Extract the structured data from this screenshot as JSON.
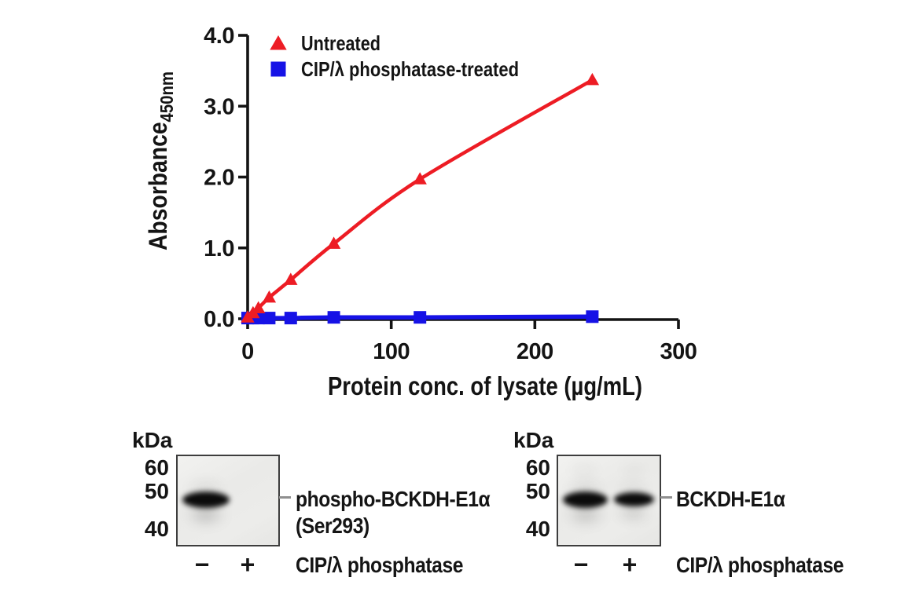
{
  "chart_data": {
    "type": "line",
    "title": "",
    "xlabel": "Protein conc. of lysate (µg/mL)",
    "ylabel": "Absorbance",
    "ylabel_subscript": "450nm",
    "xlim": [
      0,
      300
    ],
    "ylim": [
      0,
      4
    ],
    "x_ticks": [
      0,
      100,
      200,
      300
    ],
    "x_tick_labels": [
      "0",
      "100",
      "200",
      "300"
    ],
    "y_ticks": [
      0,
      1,
      2,
      3,
      4
    ],
    "y_tick_labels": [
      "0.0",
      "1.0",
      "2.0",
      "3.0",
      "4.0"
    ],
    "grid": false,
    "legend_position": "top-left-inside",
    "series": [
      {
        "name": "Untreated",
        "color": "#ed1c24",
        "marker": "triangle",
        "x": [
          0,
          3.75,
          7.5,
          15,
          30,
          60,
          120,
          240
        ],
        "y": [
          0.02,
          0.08,
          0.15,
          0.3,
          0.55,
          1.06,
          1.97,
          3.37
        ]
      },
      {
        "name": "CIP/λ phosphatase-treated",
        "color": "#1612e6",
        "marker": "square",
        "x": [
          0,
          3.75,
          7.5,
          15,
          30,
          60,
          120,
          240
        ],
        "y": [
          0.01,
          0.01,
          0.01,
          0.01,
          0.01,
          0.02,
          0.02,
          0.03
        ]
      }
    ]
  },
  "blots": [
    {
      "kda_label": "kDa",
      "marker_60": "60",
      "marker_50": "50",
      "marker_40": "40",
      "target_line1": "phospho-BCKDH-E1α",
      "target_line2": "(Ser293)",
      "lane_minus": "−",
      "lane_plus": "+",
      "treatment_label": "CIP/λ phosphatase",
      "bands": [
        {
          "lane": "minus",
          "intensity": "strong"
        }
      ]
    },
    {
      "kda_label": "kDa",
      "marker_60": "60",
      "marker_50": "50",
      "marker_40": "40",
      "target_line1": "BCKDH-E1α",
      "target_line2": "",
      "lane_minus": "−",
      "lane_plus": "+",
      "treatment_label": "CIP/λ phosphatase",
      "bands": [
        {
          "lane": "minus",
          "intensity": "strong"
        },
        {
          "lane": "plus",
          "intensity": "medium"
        }
      ]
    }
  ]
}
